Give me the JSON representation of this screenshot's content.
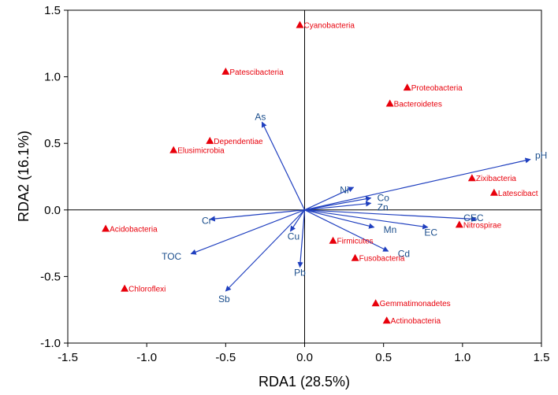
{
  "chart_data": {
    "type": "scatter",
    "subtype": "rda-biplot",
    "title": "",
    "xlabel": "RDA1 (28.5%)",
    "ylabel": "RDA2 (16.1%)",
    "xlim": [
      -1.5,
      1.5
    ],
    "ylim": [
      -1.0,
      1.5
    ],
    "xticks": [
      "-1.5",
      "-1.0",
      "-0.5",
      "0.0",
      "0.5",
      "1.0",
      "1.5"
    ],
    "yticks": [
      "-1.0",
      "-0.5",
      "0.0",
      "0.5",
      "1.0",
      "1.5"
    ],
    "grid": false,
    "colors": {
      "species": "#e8000b",
      "vectors": "#1f3fbf",
      "vector_label": "#1b4e8c",
      "axes": "#000000"
    },
    "species": [
      {
        "name": "Cyanobacteria",
        "x": -0.03,
        "y": 1.39
      },
      {
        "name": "Patescibacteria",
        "x": -0.5,
        "y": 1.04
      },
      {
        "name": "Proteobacteria",
        "x": 0.65,
        "y": 0.92
      },
      {
        "name": "Bacteroidetes",
        "x": 0.54,
        "y": 0.8
      },
      {
        "name": "Dependentiae",
        "x": -0.6,
        "y": 0.52
      },
      {
        "name": "Elusimicrobia",
        "x": -0.83,
        "y": 0.45
      },
      {
        "name": "Zixibacteria",
        "x": 1.06,
        "y": 0.24
      },
      {
        "name": "Latescibact",
        "x": 1.2,
        "y": 0.13
      },
      {
        "name": "Acidobacteria",
        "x": -1.26,
        "y": -0.14
      },
      {
        "name": "Nitrospirae",
        "x": 0.98,
        "y": -0.11
      },
      {
        "name": "Firmicutes",
        "x": 0.18,
        "y": -0.23
      },
      {
        "name": "Fusobacteria",
        "x": 0.32,
        "y": -0.36
      },
      {
        "name": "Chloroflexi",
        "x": -1.14,
        "y": -0.59
      },
      {
        "name": "Gemmatimonadetes",
        "x": 0.45,
        "y": -0.7
      },
      {
        "name": "Actinobacteria",
        "x": 0.52,
        "y": -0.83
      }
    ],
    "vectors": [
      {
        "name": "pH",
        "x": 1.43,
        "y": 0.38,
        "label_x": 1.46,
        "label_y": 0.41
      },
      {
        "name": "CEC",
        "x": 1.09,
        "y": -0.07,
        "label_x": 1.07,
        "label_y": -0.06
      },
      {
        "name": "EC",
        "x": 0.78,
        "y": -0.13,
        "label_x": 0.8,
        "label_y": -0.17
      },
      {
        "name": "Co",
        "x": 0.42,
        "y": 0.09,
        "label_x": 0.46,
        "label_y": 0.09
      },
      {
        "name": "Zn",
        "x": 0.42,
        "y": 0.05,
        "label_x": 0.46,
        "label_y": 0.02
      },
      {
        "name": "Ni",
        "x": 0.31,
        "y": 0.17,
        "label_x": 0.28,
        "label_y": 0.15
      },
      {
        "name": "Mn",
        "x": 0.44,
        "y": -0.13,
        "label_x": 0.5,
        "label_y": -0.15
      },
      {
        "name": "Cd",
        "x": 0.53,
        "y": -0.31,
        "label_x": 0.59,
        "label_y": -0.33
      },
      {
        "name": "Pb",
        "x": -0.03,
        "y": -0.43,
        "label_x": -0.03,
        "label_y": -0.47
      },
      {
        "name": "Cu",
        "x": -0.09,
        "y": -0.16,
        "label_x": -0.07,
        "label_y": -0.2
      },
      {
        "name": "Sb",
        "x": -0.5,
        "y": -0.61,
        "label_x": -0.51,
        "label_y": -0.67
      },
      {
        "name": "TOC",
        "x": -0.72,
        "y": -0.33,
        "label_x": -0.78,
        "label_y": -0.35
      },
      {
        "name": "Cr",
        "x": -0.6,
        "y": -0.07,
        "label_x": -0.62,
        "label_y": -0.08
      },
      {
        "name": "As",
        "x": -0.27,
        "y": 0.66,
        "label_x": -0.28,
        "label_y": 0.7
      }
    ]
  }
}
